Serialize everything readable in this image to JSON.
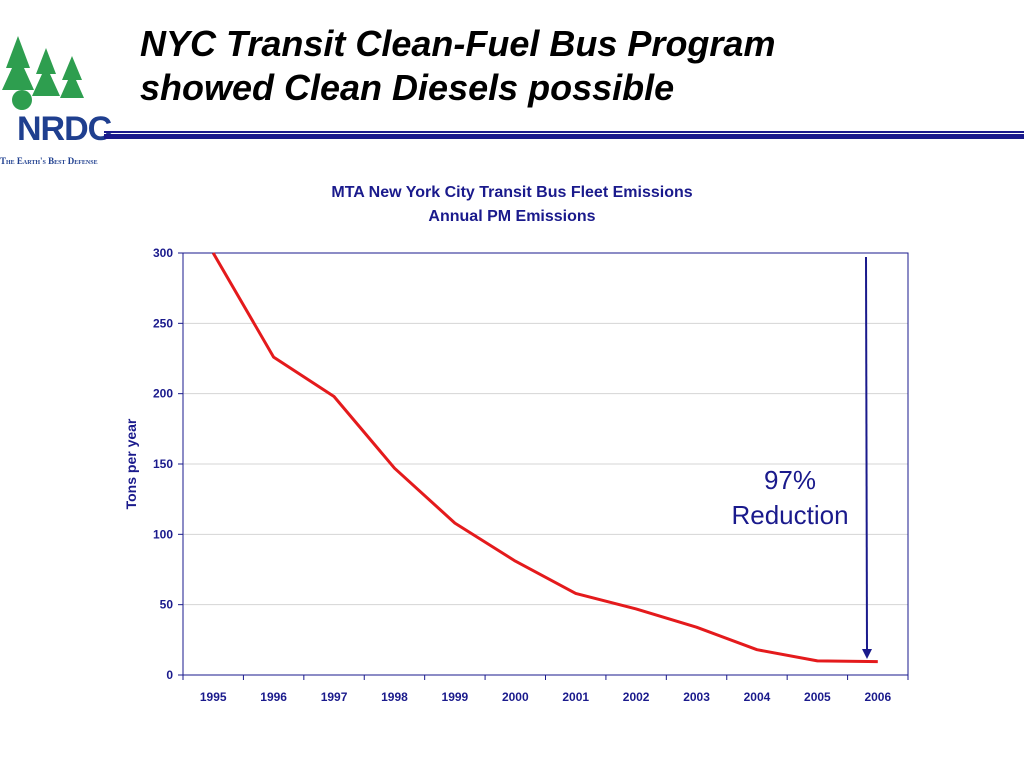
{
  "slide": {
    "title_line1": "NYC Transit Clean-Fuel Bus Program",
    "title_line2": "showed Clean Diesels possible"
  },
  "logo": {
    "name": "NRDC",
    "tagline": "The Earth's Best Defense"
  },
  "colors": {
    "accent": "#1a1a8c",
    "series": "#e41a1c",
    "logo_green": "#2e9e4f",
    "logo_blue": "#1f3f8f"
  },
  "annotation": {
    "line1": "97%",
    "line2": "Reduction"
  },
  "chart_data": {
    "type": "line",
    "title": "MTA New York City Transit Bus Fleet Emissions",
    "subtitle": "Annual PM Emissions",
    "xlabel": "",
    "ylabel": "Tons per year",
    "ylim": [
      0,
      300
    ],
    "yticks": [
      0,
      50,
      100,
      150,
      200,
      250,
      300
    ],
    "grid": true,
    "categories": [
      "1995",
      "1996",
      "1997",
      "1998",
      "1999",
      "2000",
      "2001",
      "2002",
      "2003",
      "2004",
      "2005",
      "2006"
    ],
    "series": [
      {
        "values": [
          300,
          226,
          198,
          147,
          108,
          81,
          58,
          47,
          34,
          18,
          10,
          9.5
        ]
      }
    ]
  }
}
